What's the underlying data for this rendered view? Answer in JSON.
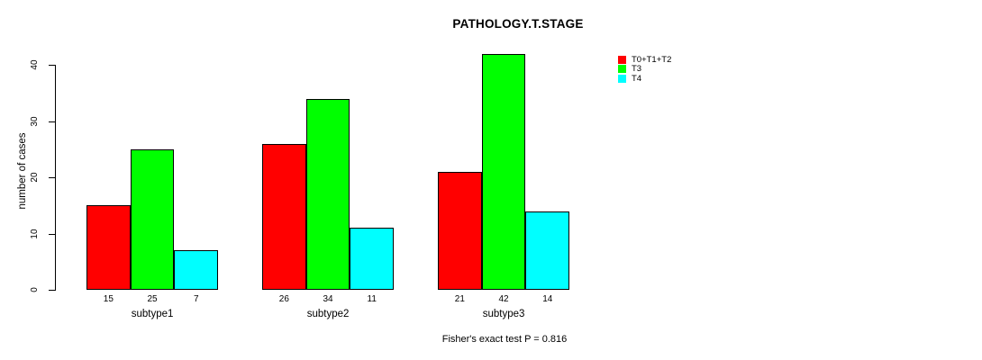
{
  "chart_data": {
    "type": "bar",
    "title": "PATHOLOGY.T.STAGE",
    "ylabel": "number of cases",
    "xlabel": "",
    "categories": [
      "subtype1",
      "subtype2",
      "subtype3"
    ],
    "series": [
      {
        "name": "T0+T1+T2",
        "color": "#ff0000",
        "values": [
          15,
          26,
          21
        ]
      },
      {
        "name": "T3",
        "color": "#00ff00",
        "values": [
          25,
          34,
          42
        ]
      },
      {
        "name": "T4",
        "color": "#00ffff",
        "values": [
          7,
          11,
          14
        ]
      }
    ],
    "bar_value_labels": [
      [
        "15",
        "25",
        "7"
      ],
      [
        "26",
        "34",
        "11"
      ],
      [
        "21",
        "42",
        "14"
      ]
    ],
    "yticks": [
      0,
      10,
      20,
      30,
      40
    ],
    "ylim": [
      0,
      40
    ],
    "grid": false,
    "legend_position": "top-right",
    "annotation": "Fisher's exact test P = 0.816"
  }
}
